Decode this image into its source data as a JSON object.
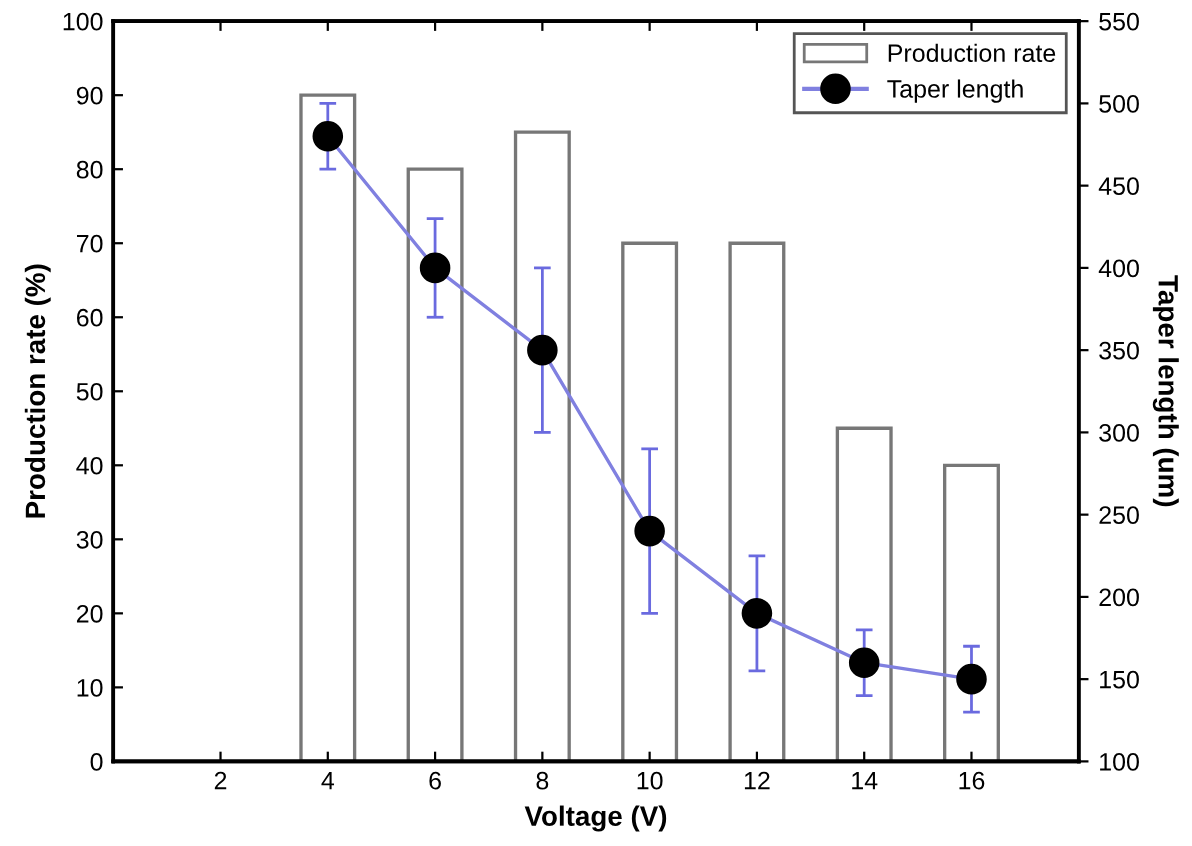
{
  "chart_data": {
    "type": "bar",
    "xlabel": "Voltage (V)",
    "ylabel": "Production rate (%)",
    "y2label": "Taper length (um)",
    "x": [
      4,
      6,
      8,
      10,
      12,
      14,
      16
    ],
    "series": [
      {
        "name": "Production rate",
        "color": "#ffffff",
        "values": [
          90,
          80,
          85,
          70,
          70,
          45,
          40
        ]
      },
      {
        "name": "Taper length",
        "type": "line",
        "axis": "y2",
        "color": "#8080e0",
        "marker": "circle",
        "values": [
          480,
          400,
          350,
          240,
          190,
          160,
          150
        ],
        "errors": [
          20,
          30,
          50,
          50,
          35,
          20,
          20
        ]
      }
    ],
    "xlim": [
      0,
      18
    ],
    "xticks": [
      2,
      4,
      6,
      8,
      10,
      12,
      14,
      16
    ],
    "ylim": [
      0,
      100
    ],
    "yticks": [
      0,
      10,
      20,
      30,
      40,
      50,
      60,
      70,
      80,
      90,
      100
    ],
    "y2lim": [
      100,
      550
    ],
    "y2ticks": [
      100,
      150,
      200,
      250,
      300,
      350,
      400,
      450,
      500,
      550
    ],
    "grid": false,
    "legend": "top right"
  }
}
